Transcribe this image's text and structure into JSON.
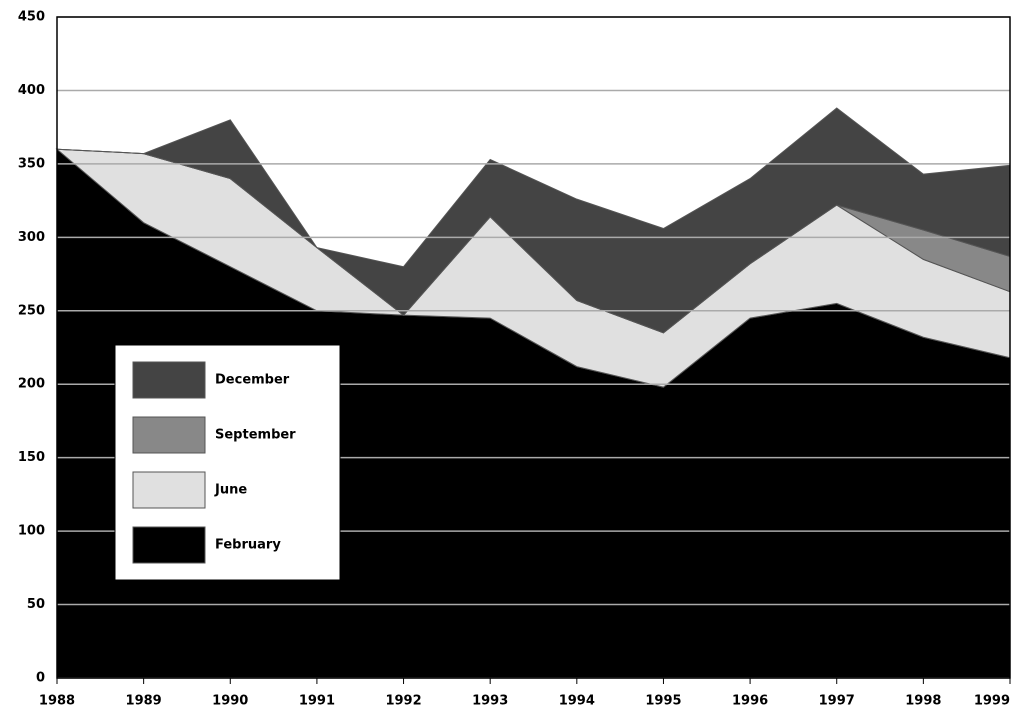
{
  "chart_data": {
    "type": "stacked-area",
    "categories": [
      "1988",
      "1989",
      "1990",
      "1991",
      "1992",
      "1993",
      "1994",
      "1995",
      "1996",
      "1997",
      "1998",
      "1999"
    ],
    "series": [
      {
        "name": "February",
        "color": "#000000",
        "values": [
          360,
          310,
          280,
          250,
          247,
          245,
          212,
          198,
          245,
          255,
          232,
          218
        ]
      },
      {
        "name": "June",
        "color": "#e0e0e0",
        "values": [
          0,
          47,
          60,
          43,
          0,
          69,
          45,
          37,
          37,
          67,
          53,
          45
        ]
      },
      {
        "name": "September",
        "color": "#888888",
        "values": [
          0,
          0,
          0,
          0,
          0,
          0,
          0,
          0,
          0,
          0,
          20,
          24
        ]
      },
      {
        "name": "December",
        "color": "#444444",
        "values": [
          0,
          0,
          40,
          0,
          33,
          39,
          69,
          71,
          58,
          66,
          38,
          62
        ]
      }
    ],
    "ylim": [
      0,
      450
    ],
    "yticks": [
      0,
      50,
      100,
      150,
      200,
      250,
      300,
      350,
      400,
      450
    ],
    "grid": true
  }
}
